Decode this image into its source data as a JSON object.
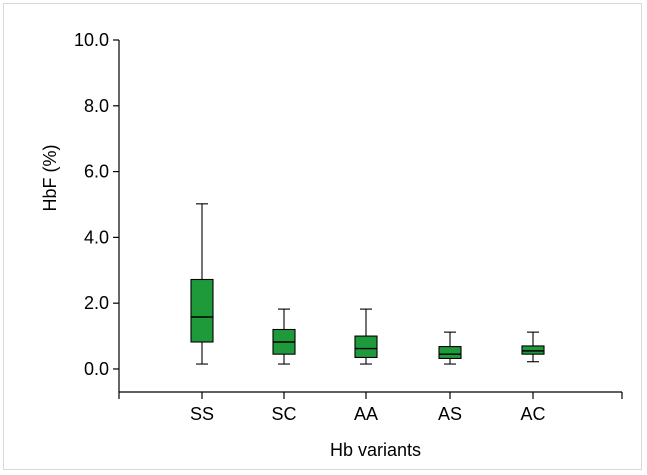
{
  "chart_data": {
    "type": "boxplot",
    "xlabel": "Hb variants",
    "ylabel": "HbF (%)",
    "ylim": [
      -0.7,
      10.0
    ],
    "yticks": [
      {
        "value": 0,
        "label": "0.0"
      },
      {
        "value": 2,
        "label": "2.0"
      },
      {
        "value": 4,
        "label": "4.0"
      },
      {
        "value": 6,
        "label": "6.0"
      },
      {
        "value": 8,
        "label": "8.0"
      },
      {
        "value": 10,
        "label": "10.0"
      }
    ],
    "categories": [
      "SS",
      "SC",
      "AA",
      "AS",
      "AC"
    ],
    "boxes": [
      {
        "category": "SS",
        "min": 0.15,
        "q1": 0.82,
        "median": 1.58,
        "q3": 2.72,
        "max": 5.02
      },
      {
        "category": "SC",
        "min": 0.15,
        "q1": 0.45,
        "median": 0.82,
        "q3": 1.2,
        "max": 1.82
      },
      {
        "category": "AA",
        "min": 0.15,
        "q1": 0.35,
        "median": 0.62,
        "q3": 1.0,
        "max": 1.82
      },
      {
        "category": "AS",
        "min": 0.15,
        "q1": 0.32,
        "median": 0.45,
        "q3": 0.68,
        "max": 1.12
      },
      {
        "category": "AC",
        "min": 0.22,
        "q1": 0.45,
        "median": 0.55,
        "q3": 0.7,
        "max": 1.12
      }
    ],
    "box_color": "#1f9a3b",
    "grid": false,
    "legend": "none"
  }
}
